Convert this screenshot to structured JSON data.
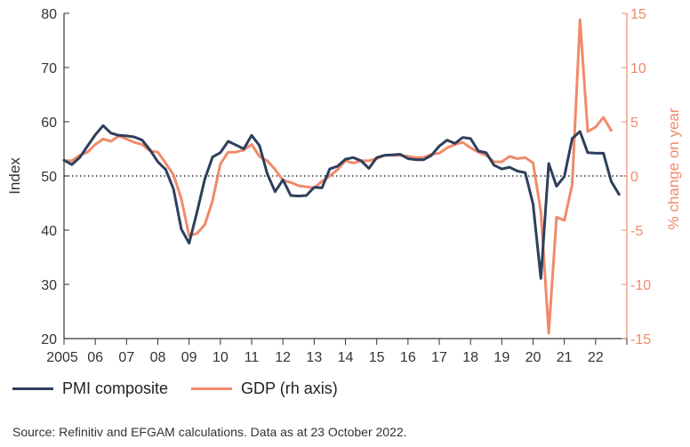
{
  "chart_data": {
    "type": "line",
    "xlabel": "",
    "ylabel": "Index",
    "y2label": "% change on year",
    "ylim": [
      20,
      80
    ],
    "y2lim": [
      -15,
      15
    ],
    "yticks": [
      20,
      30,
      40,
      50,
      60,
      70,
      80
    ],
    "y2ticks": [
      15,
      10,
      5,
      0,
      -5,
      -10,
      -15
    ],
    "xlim": [
      2005,
      2023
    ],
    "xticks": [
      2005,
      2006,
      2007,
      2008,
      2009,
      2010,
      2011,
      2012,
      2013,
      2014,
      2015,
      2016,
      2017,
      2018,
      2019,
      2020,
      2021,
      2022
    ],
    "xtick_labels": [
      "2005",
      "06",
      "07",
      "08",
      "09",
      "10",
      "11",
      "12",
      "13",
      "14",
      "15",
      "16",
      "17",
      "18",
      "19",
      "20",
      "21",
      "22"
    ],
    "reference_line": {
      "value": 50,
      "axis": "left",
      "style": "dotted"
    },
    "series": [
      {
        "name": "PMI composite",
        "axis": "left",
        "color": "#2e3f5c",
        "points": [
          [
            2005.0,
            52.9
          ],
          [
            2005.25,
            52.1
          ],
          [
            2005.5,
            53.4
          ],
          [
            2005.75,
            55.5
          ],
          [
            2006.0,
            57.6
          ],
          [
            2006.25,
            59.3
          ],
          [
            2006.5,
            57.9
          ],
          [
            2006.75,
            57.5
          ],
          [
            2007.0,
            57.4
          ],
          [
            2007.25,
            57.2
          ],
          [
            2007.5,
            56.6
          ],
          [
            2007.75,
            54.8
          ],
          [
            2008.0,
            52.6
          ],
          [
            2008.25,
            51.2
          ],
          [
            2008.5,
            47.6
          ],
          [
            2008.75,
            40.2
          ],
          [
            2009.0,
            37.6
          ],
          [
            2009.25,
            43.3
          ],
          [
            2009.5,
            49.4
          ],
          [
            2009.75,
            53.5
          ],
          [
            2010.0,
            54.3
          ],
          [
            2010.25,
            56.4
          ],
          [
            2010.5,
            55.7
          ],
          [
            2010.75,
            55.0
          ],
          [
            2011.0,
            57.5
          ],
          [
            2011.25,
            55.6
          ],
          [
            2011.5,
            50.4
          ],
          [
            2011.75,
            47.1
          ],
          [
            2012.0,
            49.3
          ],
          [
            2012.25,
            46.4
          ],
          [
            2012.5,
            46.3
          ],
          [
            2012.75,
            46.4
          ],
          [
            2013.0,
            47.9
          ],
          [
            2013.25,
            47.8
          ],
          [
            2013.5,
            51.3
          ],
          [
            2013.75,
            51.8
          ],
          [
            2014.0,
            53.1
          ],
          [
            2014.25,
            53.4
          ],
          [
            2014.5,
            52.8
          ],
          [
            2014.75,
            51.4
          ],
          [
            2015.0,
            53.4
          ],
          [
            2015.25,
            53.8
          ],
          [
            2015.5,
            53.9
          ],
          [
            2015.75,
            54.0
          ],
          [
            2016.0,
            53.2
          ],
          [
            2016.25,
            53.0
          ],
          [
            2016.5,
            53.0
          ],
          [
            2016.75,
            53.8
          ],
          [
            2017.0,
            55.5
          ],
          [
            2017.25,
            56.6
          ],
          [
            2017.5,
            56.0
          ],
          [
            2017.75,
            57.1
          ],
          [
            2018.0,
            56.9
          ],
          [
            2018.25,
            54.6
          ],
          [
            2018.5,
            54.3
          ],
          [
            2018.75,
            52.0
          ],
          [
            2019.0,
            51.3
          ],
          [
            2019.25,
            51.6
          ],
          [
            2019.5,
            50.9
          ],
          [
            2019.75,
            50.6
          ],
          [
            2020.0,
            44.8
          ],
          [
            2020.25,
            31.1
          ],
          [
            2020.5,
            52.3
          ],
          [
            2020.75,
            48.1
          ],
          [
            2021.0,
            49.9
          ],
          [
            2021.25,
            56.9
          ],
          [
            2021.5,
            58.2
          ],
          [
            2021.75,
            54.3
          ],
          [
            2022.0,
            54.2
          ],
          [
            2022.25,
            54.2
          ],
          [
            2022.5,
            49.0
          ],
          [
            2022.75,
            46.6
          ]
        ]
      },
      {
        "name": "GDP (rh axis)",
        "axis": "right",
        "color": "#f08a6a",
        "points": [
          [
            2005.0,
            1.4
          ],
          [
            2005.25,
            1.4
          ],
          [
            2005.5,
            1.9
          ],
          [
            2005.75,
            2.2
          ],
          [
            2006.0,
            2.9
          ],
          [
            2006.25,
            3.4
          ],
          [
            2006.5,
            3.2
          ],
          [
            2006.75,
            3.7
          ],
          [
            2007.0,
            3.4
          ],
          [
            2007.25,
            3.1
          ],
          [
            2007.5,
            2.9
          ],
          [
            2007.75,
            2.3
          ],
          [
            2008.0,
            2.2
          ],
          [
            2008.25,
            1.2
          ],
          [
            2008.5,
            0.1
          ],
          [
            2008.75,
            -2.1
          ],
          [
            2009.0,
            -5.5
          ],
          [
            2009.25,
            -5.3
          ],
          [
            2009.5,
            -4.5
          ],
          [
            2009.75,
            -2.3
          ],
          [
            2010.0,
            1.1
          ],
          [
            2010.25,
            2.2
          ],
          [
            2010.5,
            2.2
          ],
          [
            2010.75,
            2.4
          ],
          [
            2011.0,
            2.9
          ],
          [
            2011.25,
            1.8
          ],
          [
            2011.5,
            1.4
          ],
          [
            2011.75,
            0.6
          ],
          [
            2012.0,
            -0.4
          ],
          [
            2012.25,
            -0.6
          ],
          [
            2012.5,
            -0.9
          ],
          [
            2012.75,
            -1.0
          ],
          [
            2013.0,
            -1.1
          ],
          [
            2013.25,
            -0.5
          ],
          [
            2013.5,
            0.0
          ],
          [
            2013.75,
            0.6
          ],
          [
            2014.0,
            1.4
          ],
          [
            2014.25,
            1.2
          ],
          [
            2014.5,
            1.4
          ],
          [
            2014.75,
            1.4
          ],
          [
            2015.0,
            1.6
          ],
          [
            2015.25,
            1.9
          ],
          [
            2015.5,
            1.9
          ],
          [
            2015.75,
            1.9
          ],
          [
            2016.0,
            1.8
          ],
          [
            2016.25,
            1.7
          ],
          [
            2016.5,
            1.7
          ],
          [
            2016.75,
            2.0
          ],
          [
            2017.0,
            2.1
          ],
          [
            2017.25,
            2.6
          ],
          [
            2017.5,
            2.9
          ],
          [
            2017.75,
            3.1
          ],
          [
            2018.0,
            2.6
          ],
          [
            2018.25,
            2.2
          ],
          [
            2018.5,
            1.9
          ],
          [
            2018.75,
            1.3
          ],
          [
            2019.0,
            1.3
          ],
          [
            2019.25,
            1.8
          ],
          [
            2019.5,
            1.6
          ],
          [
            2019.75,
            1.7
          ],
          [
            2020.0,
            1.2
          ],
          [
            2020.25,
            -3.3
          ],
          [
            2020.5,
            -14.5
          ],
          [
            2020.75,
            -3.8
          ],
          [
            2021.0,
            -4.1
          ],
          [
            2021.25,
            -0.8
          ],
          [
            2021.5,
            14.4
          ],
          [
            2021.75,
            4.1
          ],
          [
            2022.0,
            4.5
          ],
          [
            2022.25,
            5.4
          ],
          [
            2022.5,
            4.2
          ]
        ]
      }
    ]
  },
  "legend": {
    "pmi_label": "PMI composite",
    "gdp_label": "GDP (rh axis)"
  },
  "source_text": "Source: Refinitiv and EFGAM calculations. Data as at 23 October 2022."
}
